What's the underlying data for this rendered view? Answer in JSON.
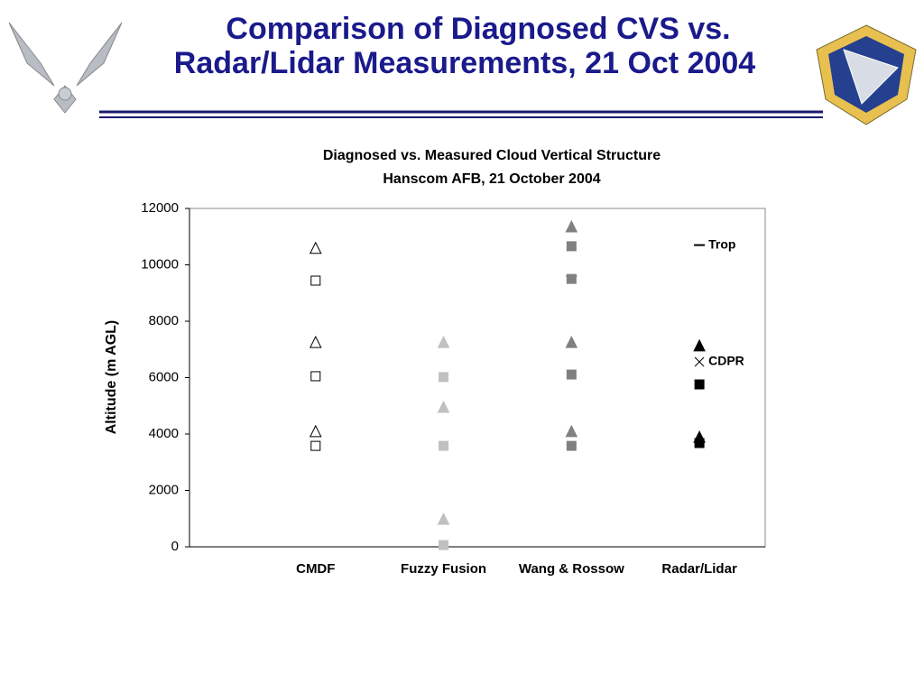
{
  "slide": {
    "title_lines": [
      "Comparison of Diagnosed CVS vs.",
      "Radar/Lidar Measurements, 21 Oct 2004"
    ]
  },
  "chart_data": {
    "type": "scatter",
    "title": "Diagnosed vs. Measured Cloud Vertical Structure",
    "subtitle": "Hanscom AFB, 21 October 2004",
    "y_label": "Altitude (m AGL)",
    "ylim": [
      0,
      12000
    ],
    "yticks": [
      0,
      2000,
      4000,
      6000,
      8000,
      10000,
      12000
    ],
    "trop_label": "Trop",
    "cdpr_label": "CDPR",
    "groups": [
      {
        "category": "CMDF",
        "color": "#000000",
        "filled": false,
        "tops": [
          10600,
          7260,
          4100
        ],
        "bases": [
          9440,
          6050,
          3580
        ],
        "trop": null,
        "cdpr": null
      },
      {
        "category": "Fuzzy Fusion",
        "color": "#c0c0c0",
        "filled": true,
        "tops": [
          7260,
          4960,
          990
        ],
        "bases": [
          6020,
          3580,
          60
        ],
        "trop": null,
        "cdpr": null
      },
      {
        "category": "Wang & Rossow",
        "color": "#808080",
        "filled": true,
        "tops": [
          11360,
          7260,
          4100
        ],
        "bases": [
          10660,
          9500,
          6110,
          3580
        ],
        "trop": 9600,
        "cdpr": null
      },
      {
        "category": "Radar/Lidar",
        "color": "#000000",
        "filled": true,
        "tops": [
          7140,
          3900
        ],
        "bases": [
          5760,
          3680
        ],
        "trop": 10700,
        "cdpr": 6560
      }
    ]
  }
}
